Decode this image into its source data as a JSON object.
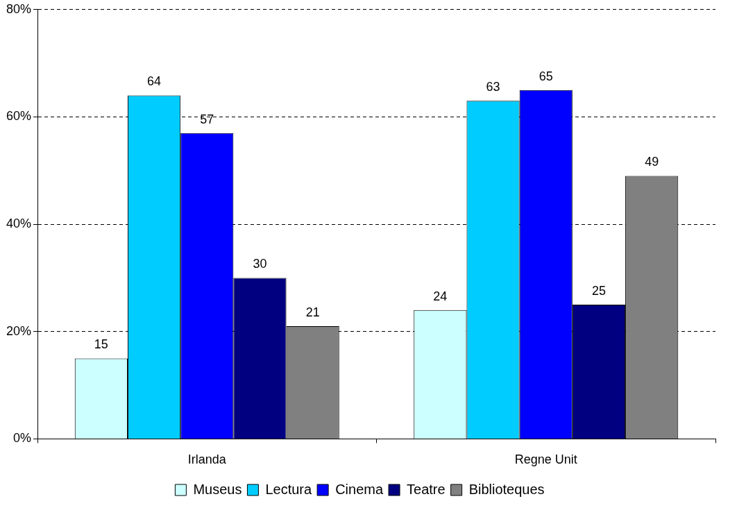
{
  "chart_data": {
    "type": "bar",
    "categories": [
      "Irlanda",
      "Regne Unit"
    ],
    "series": [
      {
        "name": "Museus",
        "color": "#ccffff",
        "values": [
          15,
          24
        ]
      },
      {
        "name": "Lectura",
        "color": "#00ccff",
        "values": [
          64,
          63
        ]
      },
      {
        "name": "Cinema",
        "color": "#0000ff",
        "values": [
          57,
          65
        ]
      },
      {
        "name": "Teatre",
        "color": "#000080",
        "values": [
          30,
          25
        ]
      },
      {
        "name": "Biblioteques",
        "color": "#808080",
        "values": [
          21,
          49
        ]
      }
    ],
    "ylim": [
      0,
      80
    ],
    "yticks": [
      {
        "value": 0,
        "label": "0%"
      },
      {
        "value": 20,
        "label": "20%"
      },
      {
        "value": 40,
        "label": "40%"
      },
      {
        "value": 60,
        "label": "60%"
      },
      {
        "value": 80,
        "label": "80%"
      }
    ],
    "grid": "y",
    "legend": "bottom",
    "data_labels": true
  }
}
